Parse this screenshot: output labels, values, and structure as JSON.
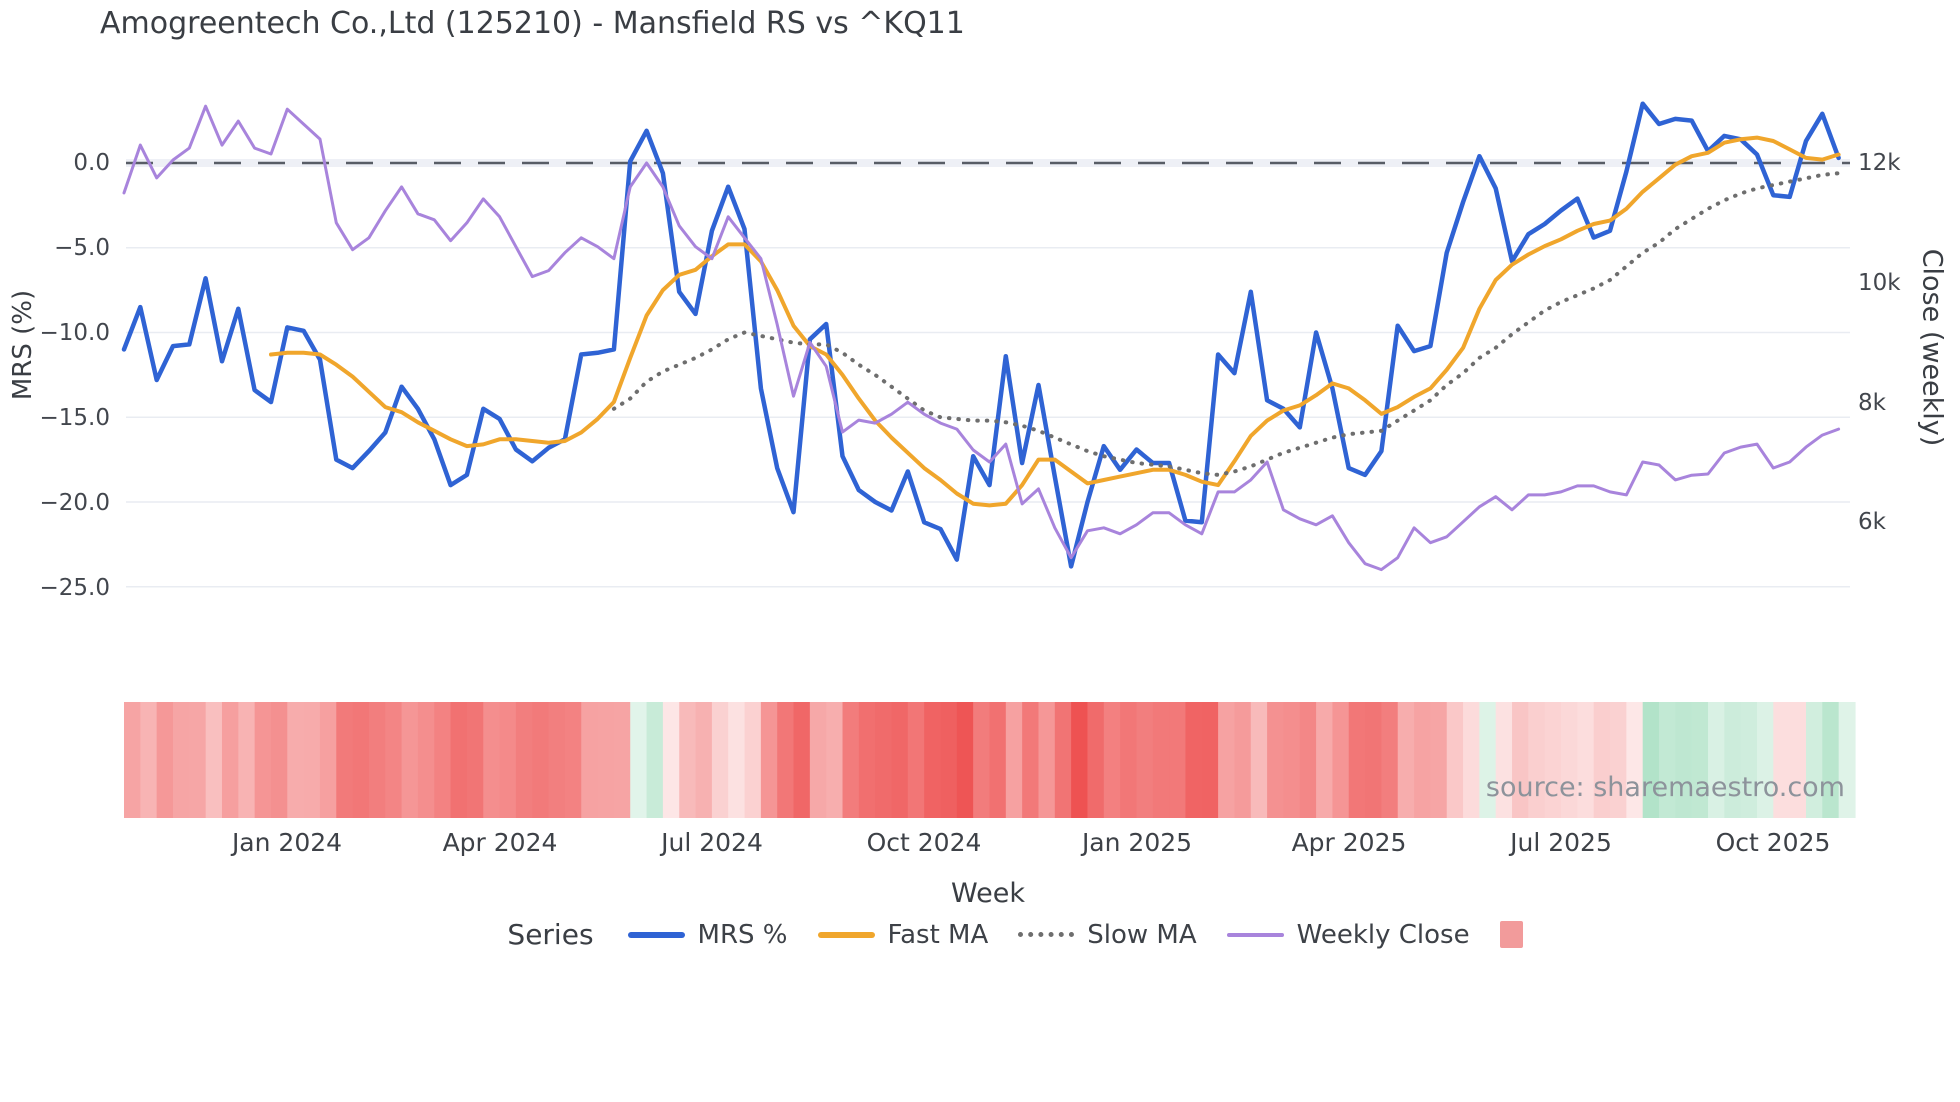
{
  "title": "Amogreentech Co.,Ltd (125210) - Mansfield RS vs ^KQ11",
  "source_text": "source: sharemaestro.com",
  "legend": {
    "title": "Series",
    "items": [
      {
        "label": "MRS %",
        "color": "#2f63d4",
        "style": "line"
      },
      {
        "label": "Fast MA",
        "color": "#f0a62c",
        "style": "line"
      },
      {
        "label": "Slow MA",
        "color": "#6e6e6e",
        "style": "dotted"
      },
      {
        "label": "Weekly Close",
        "color": "#a884dc",
        "style": "line-thin"
      },
      {
        "label": "",
        "color": "#f29b9b",
        "style": "square"
      }
    ]
  },
  "chart_data": {
    "type": "line",
    "title": "Amogreentech Co.,Ltd (125210) - Mansfield RS vs ^KQ11",
    "xlabel": "Week",
    "ylabel_left": "MRS (%)",
    "ylabel_right": "Close (weekly)",
    "x_tick_labels": [
      "Jan 2024",
      "Apr 2024",
      "Jul 2024",
      "Oct 2024",
      "Jan 2025",
      "Apr 2025",
      "Jul 2025",
      "Oct 2025"
    ],
    "x_tick_weeks": [
      10,
      23,
      36,
      49,
      62,
      75,
      88,
      101
    ],
    "yaxis_left": {
      "tick_labels": [
        "0.0",
        "−5.0",
        "−10.0",
        "−15.0",
        "−20.0",
        "−25.0"
      ],
      "tick_values": [
        0,
        -5,
        -10,
        -15,
        -20,
        -25
      ],
      "range": [
        -27.5,
        4.5
      ]
    },
    "yaxis_right": {
      "tick_labels": [
        "12k",
        "10k",
        "8k",
        "6k"
      ],
      "tick_values": [
        12,
        10,
        8,
        6
      ],
      "unit": "k"
    },
    "zero_line": 0,
    "grid": true,
    "legend_position": "bottom",
    "weeks": 106,
    "series": [
      {
        "name": "MRS %",
        "axis": "left",
        "color": "#2f63d4",
        "width": 4.5,
        "dash": "solid",
        "values": [
          -11.0,
          -8.5,
          -12.8,
          -10.8,
          -10.7,
          -6.8,
          -11.7,
          -8.6,
          -13.4,
          -14.1,
          -9.7,
          -9.9,
          -11.6,
          -17.5,
          -18.0,
          -17.0,
          -15.9,
          -13.2,
          -14.5,
          -16.3,
          -19.0,
          -18.4,
          -14.5,
          -15.1,
          -16.9,
          -17.6,
          -16.8,
          -16.3,
          -11.3,
          -11.2,
          -11.0,
          0.1,
          1.9,
          -0.6,
          -7.6,
          -8.9,
          -4.0,
          -1.4,
          -3.9,
          -13.3,
          -18.0,
          -20.6,
          -10.4,
          -9.5,
          -17.3,
          -19.3,
          -20.0,
          -20.5,
          -18.2,
          -21.2,
          -21.6,
          -23.4,
          -17.3,
          -19.0,
          -11.4,
          -17.7,
          -13.1,
          -18.5,
          -23.8,
          -20.0,
          -16.7,
          -18.1,
          -16.9,
          -17.7,
          -17.7,
          -21.1,
          -21.2,
          -11.3,
          -12.4,
          -7.6,
          -14.0,
          -14.5,
          -15.6,
          -10.0,
          -13.3,
          -18.0,
          -18.4,
          -17.0,
          -9.6,
          -11.1,
          -10.8,
          -5.3,
          -2.3,
          0.4,
          -1.5,
          -5.8,
          -4.2,
          -3.6,
          -2.8,
          -2.1,
          -4.4,
          -4.0,
          -0.5,
          3.5,
          2.3,
          2.6,
          2.5,
          0.7,
          1.6,
          1.4,
          0.5,
          -1.9,
          -2.0,
          1.3,
          2.9,
          0.3
        ]
      },
      {
        "name": "Fast MA",
        "axis": "left",
        "color": "#f0a62c",
        "width": 4,
        "dash": "solid",
        "values": [
          null,
          null,
          null,
          null,
          null,
          null,
          null,
          null,
          null,
          -11.3,
          -11.2,
          -11.2,
          -11.3,
          -11.9,
          -12.6,
          -13.5,
          -14.4,
          -14.7,
          -15.3,
          -15.8,
          -16.3,
          -16.7,
          -16.6,
          -16.3,
          -16.3,
          -16.4,
          -16.5,
          -16.4,
          -15.9,
          -15.1,
          -14.1,
          -11.5,
          -9.0,
          -7.5,
          -6.6,
          -6.3,
          -5.5,
          -4.8,
          -4.8,
          -5.8,
          -7.5,
          -9.6,
          -10.8,
          -11.3,
          -12.5,
          -13.9,
          -15.2,
          -16.2,
          -17.1,
          -18.0,
          -18.7,
          -19.5,
          -20.1,
          -20.2,
          -20.1,
          -19.0,
          -17.5,
          -17.5,
          -18.2,
          -18.9,
          -18.7,
          -18.5,
          -18.3,
          -18.1,
          -18.1,
          -18.4,
          -18.8,
          -19.0,
          -17.6,
          -16.1,
          -15.2,
          -14.6,
          -14.3,
          -13.7,
          -13.0,
          -13.3,
          -14.0,
          -14.8,
          -14.4,
          -13.8,
          -13.3,
          -12.2,
          -10.9,
          -8.6,
          -6.9,
          -6.0,
          -5.4,
          -4.9,
          -4.5,
          -4.0,
          -3.6,
          -3.4,
          -2.7,
          -1.7,
          -0.9,
          -0.1,
          0.4,
          0.6,
          1.2,
          1.4,
          1.5,
          1.3,
          0.8,
          0.3,
          0.2,
          0.5
        ]
      },
      {
        "name": "Slow MA",
        "axis": "left",
        "color": "#6e6e6e",
        "width": 4,
        "dash": "dotted",
        "values": [
          null,
          null,
          null,
          null,
          null,
          null,
          null,
          null,
          null,
          null,
          null,
          null,
          null,
          null,
          null,
          null,
          null,
          null,
          null,
          null,
          null,
          null,
          null,
          null,
          null,
          null,
          null,
          null,
          null,
          null,
          -14.5,
          -13.9,
          -12.9,
          -12.3,
          -11.9,
          -11.5,
          -11.0,
          -10.4,
          -10.0,
          -10.2,
          -10.4,
          -10.6,
          -10.7,
          -10.7,
          -11.2,
          -11.9,
          -12.5,
          -13.2,
          -13.9,
          -14.6,
          -15.0,
          -15.1,
          -15.2,
          -15.2,
          -15.3,
          -15.5,
          -15.8,
          -16.2,
          -16.6,
          -17.0,
          -17.3,
          -17.5,
          -17.7,
          -17.8,
          -17.9,
          -18.1,
          -18.3,
          -18.4,
          -18.2,
          -17.9,
          -17.5,
          -17.1,
          -16.8,
          -16.5,
          -16.2,
          -16.0,
          -15.9,
          -15.8,
          -15.2,
          -14.6,
          -14.0,
          -13.1,
          -12.4,
          -11.5,
          -10.9,
          -10.1,
          -9.4,
          -8.7,
          -8.2,
          -7.8,
          -7.4,
          -6.9,
          -6.1,
          -5.3,
          -4.7,
          -3.9,
          -3.3,
          -2.7,
          -2.2,
          -1.8,
          -1.5,
          -1.3,
          -1.1,
          -0.9,
          -0.7,
          -0.6
        ]
      },
      {
        "name": "Weekly Close",
        "axis": "right",
        "color": "#a884dc",
        "width": 3,
        "dash": "solid",
        "values": [
          11.5,
          12.3,
          11.75,
          12.05,
          12.25,
          12.95,
          12.3,
          12.7,
          12.25,
          12.15,
          12.9,
          12.65,
          12.4,
          11.0,
          10.55,
          10.75,
          11.2,
          11.6,
          11.15,
          11.05,
          10.7,
          11.0,
          11.4,
          11.1,
          10.6,
          10.1,
          10.2,
          10.5,
          10.75,
          10.6,
          10.4,
          11.6,
          12.0,
          11.6,
          10.95,
          10.6,
          10.4,
          11.1,
          10.75,
          10.4,
          9.3,
          8.1,
          9.0,
          8.6,
          7.5,
          7.7,
          7.65,
          7.8,
          8.0,
          7.8,
          7.65,
          7.55,
          7.2,
          7.0,
          7.3,
          6.3,
          6.55,
          5.9,
          5.4,
          5.85,
          5.9,
          5.8,
          5.95,
          6.15,
          6.15,
          5.95,
          5.8,
          6.5,
          6.5,
          6.7,
          7.0,
          6.2,
          6.05,
          5.95,
          6.1,
          5.65,
          5.3,
          5.2,
          5.4,
          5.9,
          5.65,
          5.75,
          6.0,
          6.25,
          6.42,
          6.2,
          6.45,
          6.45,
          6.5,
          6.6,
          6.6,
          6.5,
          6.45,
          7.0,
          6.95,
          6.7,
          6.78,
          6.8,
          7.15,
          7.25,
          7.3,
          6.9,
          7.0,
          7.25,
          7.45,
          7.55
        ]
      }
    ],
    "heatmap": {
      "description": "weekly MRS strip, red = negative, green = positive",
      "source_series": "MRS %",
      "neg_color": "#ee5151",
      "pos_color": "#7fd0a5"
    }
  },
  "colors": {
    "background": "#ffffff",
    "grid": "#e9ecf2",
    "zero_dash": "#585d66",
    "text": "#3b4046",
    "source_text": "#8d939b"
  }
}
